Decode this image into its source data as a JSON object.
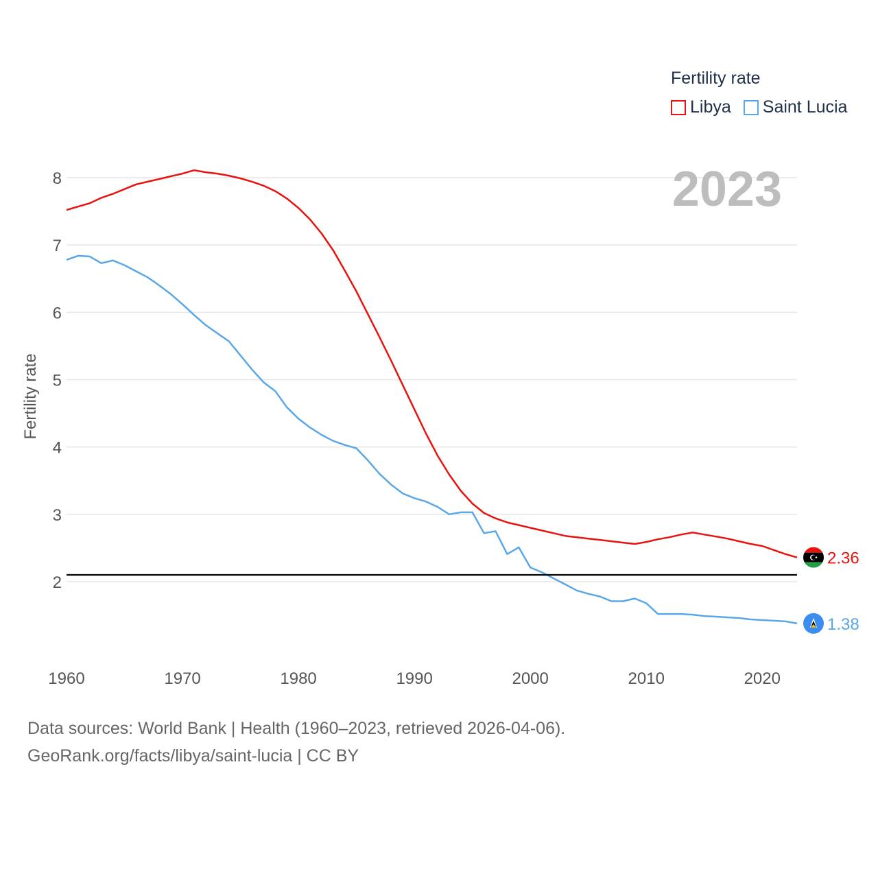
{
  "legend": {
    "title": "Fertility rate",
    "items": [
      {
        "label": "Libya",
        "color": "#e8130e"
      },
      {
        "label": "Saint Lucia",
        "color": "#5aa7e8"
      }
    ]
  },
  "footer": {
    "line1": "Data sources: World Bank | Health (1960–2023, retrieved 2026-04-06).",
    "line2": "GeoRank.org/facts/libya/saint-lucia | CC BY"
  },
  "chart_data": {
    "type": "line",
    "year_label": "2023",
    "ylabel": "Fertility rate",
    "xlim": [
      1960,
      2023
    ],
    "ylim": [
      1,
      8.2
    ],
    "yticks": [
      2,
      3,
      4,
      5,
      6,
      7,
      8
    ],
    "xticks": [
      1960,
      1970,
      1980,
      1990,
      2000,
      2010,
      2020
    ],
    "reference_line": 2.1,
    "x": [
      1960,
      1961,
      1962,
      1963,
      1964,
      1965,
      1966,
      1967,
      1968,
      1969,
      1970,
      1971,
      1972,
      1973,
      1974,
      1975,
      1976,
      1977,
      1978,
      1979,
      1980,
      1981,
      1982,
      1983,
      1984,
      1985,
      1986,
      1987,
      1988,
      1989,
      1990,
      1991,
      1992,
      1993,
      1994,
      1995,
      1996,
      1997,
      1998,
      1999,
      2000,
      2001,
      2002,
      2003,
      2004,
      2005,
      2006,
      2007,
      2008,
      2009,
      2010,
      2011,
      2012,
      2013,
      2014,
      2015,
      2016,
      2017,
      2018,
      2019,
      2020,
      2021,
      2022,
      2023
    ],
    "series": [
      {
        "name": "Libya",
        "color": "#e8130e",
        "end_label": "2.36",
        "values": [
          7.52,
          7.57,
          7.62,
          7.7,
          7.76,
          7.83,
          7.9,
          7.94,
          7.98,
          8.02,
          8.06,
          8.11,
          8.08,
          8.06,
          8.03,
          7.99,
          7.94,
          7.88,
          7.8,
          7.69,
          7.55,
          7.38,
          7.17,
          6.92,
          6.62,
          6.31,
          5.97,
          5.63,
          5.28,
          4.92,
          4.56,
          4.2,
          3.87,
          3.59,
          3.35,
          3.16,
          3.02,
          2.94,
          2.88,
          2.84,
          2.8,
          2.76,
          2.72,
          2.68,
          2.66,
          2.64,
          2.62,
          2.6,
          2.58,
          2.56,
          2.59,
          2.63,
          2.66,
          2.7,
          2.73,
          2.7,
          2.67,
          2.64,
          2.6,
          2.56,
          2.53,
          2.47,
          2.41,
          2.36
        ]
      },
      {
        "name": "Saint Lucia",
        "color": "#5aa7e8",
        "end_label": "1.38",
        "values": [
          6.78,
          6.84,
          6.83,
          6.73,
          6.77,
          6.7,
          6.61,
          6.52,
          6.4,
          6.27,
          6.12,
          5.96,
          5.81,
          5.69,
          5.57,
          5.36,
          5.15,
          4.96,
          4.83,
          4.59,
          4.42,
          4.29,
          4.18,
          4.09,
          4.03,
          3.98,
          3.8,
          3.6,
          3.44,
          3.31,
          3.24,
          3.19,
          3.11,
          3.0,
          3.03,
          3.03,
          2.72,
          2.75,
          2.41,
          2.51,
          2.21,
          2.14,
          2.05,
          1.96,
          1.87,
          1.82,
          1.78,
          1.71,
          1.71,
          1.75,
          1.68,
          1.52,
          1.52,
          1.52,
          1.51,
          1.49,
          1.48,
          1.47,
          1.46,
          1.44,
          1.43,
          1.42,
          1.41,
          1.38
        ]
      }
    ]
  }
}
